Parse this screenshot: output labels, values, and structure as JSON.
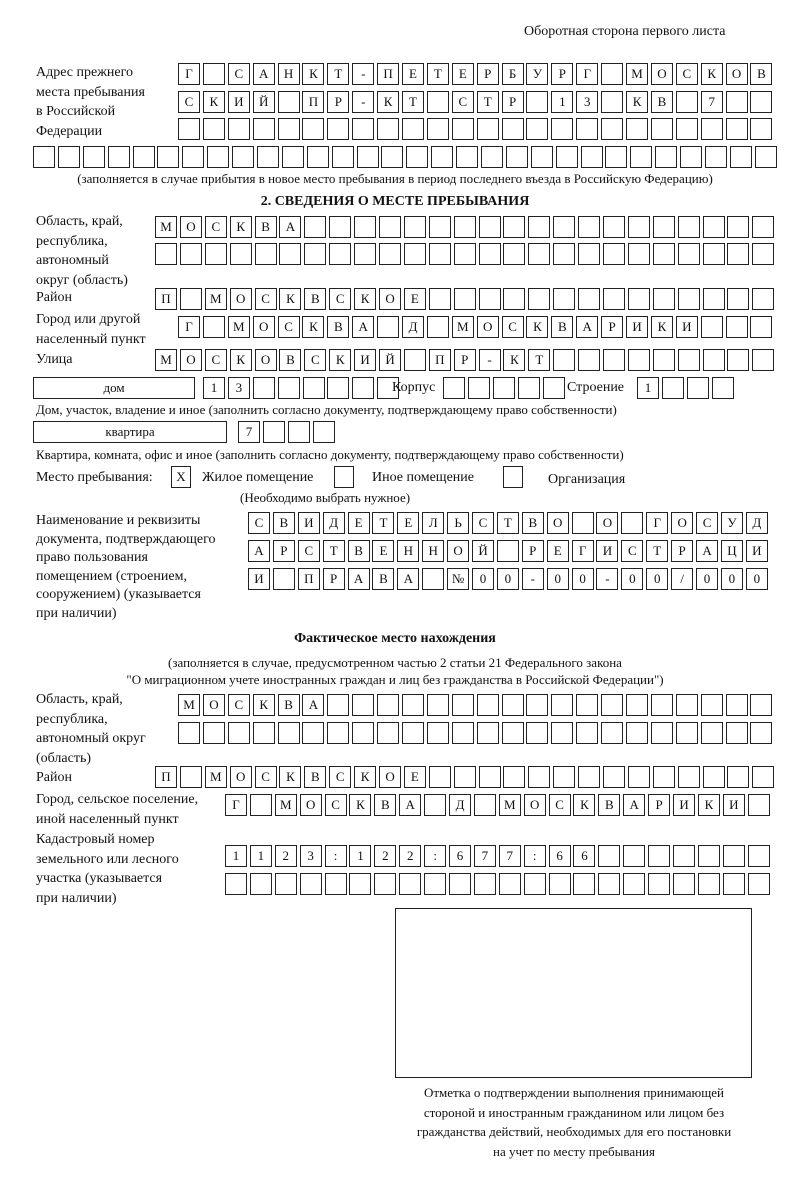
{
  "header": "Оборотная сторона первого листа",
  "prev_address": {
    "label": "Адрес прежнего\nместа пребывания\nв Российской\nФедерации",
    "rows": [
      [
        "Г",
        "",
        "С",
        "А",
        "Н",
        "К",
        "Т",
        "-",
        "П",
        "Е",
        "Т",
        "Е",
        "Р",
        "Б",
        "У",
        "Р",
        "Г",
        "",
        "М",
        "О",
        "С",
        "К",
        "О",
        "В"
      ],
      [
        "С",
        "К",
        "И",
        "Й",
        "",
        "П",
        "Р",
        "-",
        "К",
        "Т",
        "",
        "С",
        "Т",
        "Р",
        "",
        "1",
        "3",
        "",
        "К",
        "В",
        "",
        "7",
        "",
        ""
      ],
      [
        "",
        "",
        "",
        "",
        "",
        "",
        "",
        "",
        "",
        "",
        "",
        "",
        "",
        "",
        "",
        "",
        "",
        "",
        "",
        "",
        "",
        "",
        "",
        ""
      ],
      [
        "",
        "",
        "",
        "",
        "",
        "",
        "",
        "",
        "",
        "",
        "",
        "",
        "",
        "",
        "",
        "",
        "",
        "",
        "",
        "",
        "",
        "",
        "",
        "",
        "",
        "",
        "",
        "",
        "",
        ""
      ]
    ],
    "note": "(заполняется в случае прибытия в новое место пребывания в период последнего въезда в Российскую Федерацию)"
  },
  "section2": {
    "title": "2. СВЕДЕНИЯ О МЕСТЕ ПРЕБЫВАНИЯ",
    "region_label": "Область, край,\nреспублика,\nавтономный\nокруг (область)",
    "region_rows": [
      [
        "М",
        "О",
        "С",
        "К",
        "В",
        "А",
        "",
        "",
        "",
        "",
        "",
        "",
        "",
        "",
        "",
        "",
        "",
        "",
        "",
        "",
        "",
        "",
        "",
        "",
        ""
      ],
      [
        "",
        "",
        "",
        "",
        "",
        "",
        "",
        "",
        "",
        "",
        "",
        "",
        "",
        "",
        "",
        "",
        "",
        "",
        "",
        "",
        "",
        "",
        "",
        "",
        ""
      ]
    ],
    "district_label": "Район",
    "district": [
      "П",
      "",
      "М",
      "О",
      "С",
      "К",
      "В",
      "С",
      "К",
      "О",
      "Е",
      "",
      "",
      "",
      "",
      "",
      "",
      "",
      "",
      "",
      "",
      "",
      "",
      "",
      ""
    ],
    "city_label": "Город или другой\nнаселенный пункт",
    "city": [
      "Г",
      "",
      "М",
      "О",
      "С",
      "К",
      "В",
      "А",
      "",
      "Д",
      "",
      "М",
      "О",
      "С",
      "К",
      "В",
      "А",
      "Р",
      "И",
      "К",
      "И",
      "",
      "",
      ""
    ],
    "street_label": "Улица",
    "street": [
      "М",
      "О",
      "С",
      "К",
      "О",
      "В",
      "С",
      "К",
      "И",
      "Й",
      "",
      "П",
      "Р",
      "-",
      "К",
      "Т",
      "",
      "",
      "",
      "",
      "",
      "",
      "",
      "",
      ""
    ],
    "house_type": "дом",
    "house": [
      "1",
      "3",
      "",
      "",
      "",
      "",
      "",
      ""
    ],
    "korpus_label": "Корпус",
    "korpus": [
      "",
      "",
      "",
      "",
      ""
    ],
    "building_label": "Строение",
    "building": [
      "1",
      "",
      "",
      ""
    ],
    "house_note": "Дом, участок, владение и иное (заполнить согласно документу, подтверждающему право собственности)",
    "apt_type": "квартира",
    "apt": [
      "7",
      "",
      "",
      ""
    ],
    "apt_note": "Квартира, комната, офис и иное (заполнить согласно документу, подтверждающему право собственности)",
    "stay_label": "Место пребывания:",
    "options": [
      {
        "mark": "X",
        "label": "Жилое помещение"
      },
      {
        "mark": "",
        "label": "Иное помещение"
      },
      {
        "mark": "",
        "label": "Организация"
      }
    ],
    "choose_note": "(Необходимо выбрать нужное)",
    "doc_label": "Наименование и реквизиты\nдокумента, подтверждающего\nправо пользования\nпомещением (строением,\nсооружением) (указывается\nпри наличии)",
    "doc_rows": [
      [
        "С",
        "В",
        "И",
        "Д",
        "Е",
        "Т",
        "Е",
        "Л",
        "Ь",
        "С",
        "Т",
        "В",
        "О",
        "",
        "О",
        "",
        "Г",
        "О",
        "С",
        "У",
        "Д"
      ],
      [
        "А",
        "Р",
        "С",
        "Т",
        "В",
        "Е",
        "Н",
        "Н",
        "О",
        "Й",
        "",
        "Р",
        "Е",
        "Г",
        "И",
        "С",
        "Т",
        "Р",
        "А",
        "Ц",
        "И"
      ],
      [
        "И",
        "",
        "П",
        "Р",
        "А",
        "В",
        "А",
        "",
        "№",
        "0",
        "0",
        "-",
        "0",
        "0",
        "-",
        "0",
        "0",
        "/",
        "0",
        "0",
        "0"
      ]
    ]
  },
  "section3": {
    "title": "Фактическое место нахождения",
    "note1": "(заполняется в случае, предусмотренном частью 2 статьи 21 Федерального закона",
    "note2": "\"О миграционном учете иностранных граждан и лиц без гражданства в Российской Федерации\")",
    "region_label": "Область, край,\nреспублика,\nавтономный округ\n(область)",
    "region_rows": [
      [
        "М",
        "О",
        "С",
        "К",
        "В",
        "А",
        "",
        "",
        "",
        "",
        "",
        "",
        "",
        "",
        "",
        "",
        "",
        "",
        "",
        "",
        "",
        "",
        "",
        ""
      ],
      [
        "",
        "",
        "",
        "",
        "",
        "",
        "",
        "",
        "",
        "",
        "",
        "",
        "",
        "",
        "",
        "",
        "",
        "",
        "",
        "",
        "",
        "",
        "",
        ""
      ]
    ],
    "district_label": "Район",
    "district": [
      "П",
      "",
      "М",
      "О",
      "С",
      "К",
      "В",
      "С",
      "К",
      "О",
      "Е",
      "",
      "",
      "",
      "",
      "",
      "",
      "",
      "",
      "",
      "",
      "",
      "",
      "",
      ""
    ],
    "city_label": "Город, сельское поселение,\nиной населенный пункт",
    "city": [
      "Г",
      "",
      "М",
      "О",
      "С",
      "К",
      "В",
      "А",
      "",
      "Д",
      "",
      "М",
      "О",
      "С",
      "К",
      "В",
      "А",
      "Р",
      "И",
      "К",
      "И",
      ""
    ],
    "cadastre_label": "Кадастровый номер\nземельного или лесного\nучастка (указывается\nпри наличии)",
    "cadastre_rows": [
      [
        "1",
        "1",
        "2",
        "3",
        ":",
        "1",
        "2",
        "2",
        ":",
        "6",
        "7",
        "7",
        ":",
        "6",
        "6",
        "",
        "",
        "",
        "",
        "",
        "",
        ""
      ],
      [
        "",
        "",
        "",
        "",
        "",
        "",
        "",
        "",
        "",
        "",
        "",
        "",
        "",
        "",
        "",
        "",
        "",
        "",
        "",
        "",
        "",
        ""
      ]
    ],
    "stamp_caption": "Отметка о подтверждении выполнения принимающей\nстороной и иностранным гражданином или лицом без\nгражданства действий, необходимых для его постановки\nна учет по месту пребывания"
  }
}
